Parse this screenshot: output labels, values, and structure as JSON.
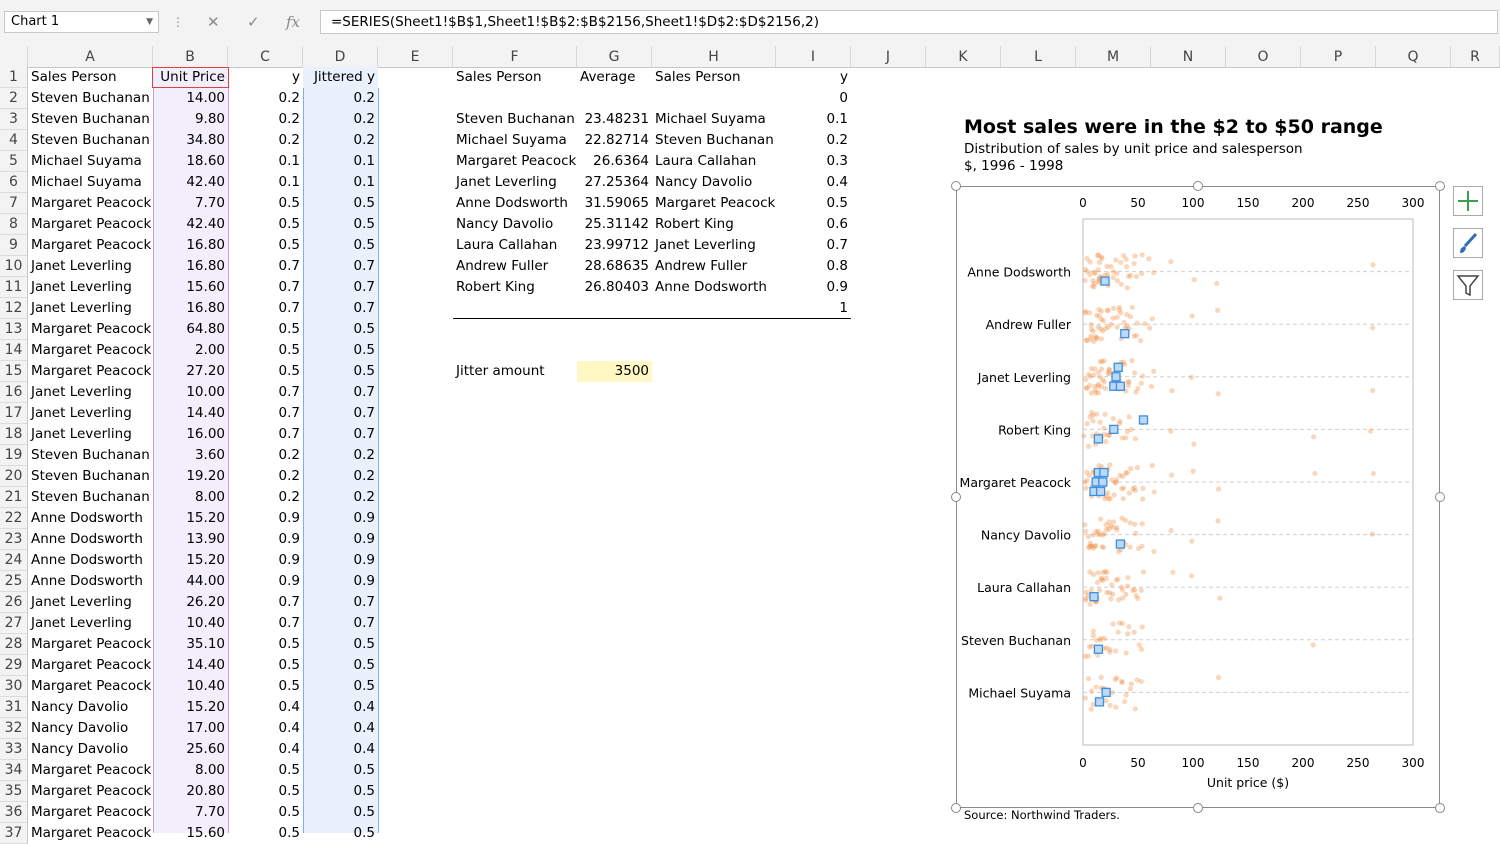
{
  "name_box": "Chart 1",
  "formula": "=SERIES(Sheet1!$B$1,Sheet1!$B$2:$B$2156,Sheet1!$D$2:$D$2156,2)",
  "icons": {
    "cancel": "cancel-icon",
    "enter": "enter-icon",
    "fx": "fx-icon"
  },
  "columns": [
    "A",
    "B",
    "C",
    "D",
    "E",
    "F",
    "G",
    "H",
    "I",
    "J",
    "K",
    "L",
    "M",
    "N",
    "O",
    "P",
    "Q",
    "R"
  ],
  "rows": [
    {
      "n": "1",
      "a": "Sales Person",
      "b": "Unit Price",
      "c": "y",
      "d": "Jittered y"
    },
    {
      "n": "2",
      "a": "Steven Buchanan",
      "b": "14.00",
      "c": "0.2",
      "d": "0.2"
    },
    {
      "n": "3",
      "a": "Steven Buchanan",
      "b": "9.80",
      "c": "0.2",
      "d": "0.2"
    },
    {
      "n": "4",
      "a": "Steven Buchanan",
      "b": "34.80",
      "c": "0.2",
      "d": "0.2"
    },
    {
      "n": "5",
      "a": "Michael Suyama",
      "b": "18.60",
      "c": "0.1",
      "d": "0.1"
    },
    {
      "n": "6",
      "a": "Michael Suyama",
      "b": "42.40",
      "c": "0.1",
      "d": "0.1"
    },
    {
      "n": "7",
      "a": "Margaret Peacock",
      "b": "7.70",
      "c": "0.5",
      "d": "0.5"
    },
    {
      "n": "8",
      "a": "Margaret Peacock",
      "b": "42.40",
      "c": "0.5",
      "d": "0.5"
    },
    {
      "n": "9",
      "a": "Margaret Peacock",
      "b": "16.80",
      "c": "0.5",
      "d": "0.5"
    },
    {
      "n": "10",
      "a": "Janet Leverling",
      "b": "16.80",
      "c": "0.7",
      "d": "0.7"
    },
    {
      "n": "11",
      "a": "Janet Leverling",
      "b": "15.60",
      "c": "0.7",
      "d": "0.7"
    },
    {
      "n": "12",
      "a": "Janet Leverling",
      "b": "16.80",
      "c": "0.7",
      "d": "0.7"
    },
    {
      "n": "13",
      "a": "Margaret Peacock",
      "b": "64.80",
      "c": "0.5",
      "d": "0.5"
    },
    {
      "n": "14",
      "a": "Margaret Peacock",
      "b": "2.00",
      "c": "0.5",
      "d": "0.5"
    },
    {
      "n": "15",
      "a": "Margaret Peacock",
      "b": "27.20",
      "c": "0.5",
      "d": "0.5"
    },
    {
      "n": "16",
      "a": "Janet Leverling",
      "b": "10.00",
      "c": "0.7",
      "d": "0.7"
    },
    {
      "n": "17",
      "a": "Janet Leverling",
      "b": "14.40",
      "c": "0.7",
      "d": "0.7"
    },
    {
      "n": "18",
      "a": "Janet Leverling",
      "b": "16.00",
      "c": "0.7",
      "d": "0.7"
    },
    {
      "n": "19",
      "a": "Steven Buchanan",
      "b": "3.60",
      "c": "0.2",
      "d": "0.2"
    },
    {
      "n": "20",
      "a": "Steven Buchanan",
      "b": "19.20",
      "c": "0.2",
      "d": "0.2"
    },
    {
      "n": "21",
      "a": "Steven Buchanan",
      "b": "8.00",
      "c": "0.2",
      "d": "0.2"
    },
    {
      "n": "22",
      "a": "Anne Dodsworth",
      "b": "15.20",
      "c": "0.9",
      "d": "0.9"
    },
    {
      "n": "23",
      "a": "Anne Dodsworth",
      "b": "13.90",
      "c": "0.9",
      "d": "0.9"
    },
    {
      "n": "24",
      "a": "Anne Dodsworth",
      "b": "15.20",
      "c": "0.9",
      "d": "0.9"
    },
    {
      "n": "25",
      "a": "Anne Dodsworth",
      "b": "44.00",
      "c": "0.9",
      "d": "0.9"
    },
    {
      "n": "26",
      "a": "Janet Leverling",
      "b": "26.20",
      "c": "0.7",
      "d": "0.7"
    },
    {
      "n": "27",
      "a": "Janet Leverling",
      "b": "10.40",
      "c": "0.7",
      "d": "0.7"
    },
    {
      "n": "28",
      "a": "Margaret Peacock",
      "b": "35.10",
      "c": "0.5",
      "d": "0.5"
    },
    {
      "n": "29",
      "a": "Margaret Peacock",
      "b": "14.40",
      "c": "0.5",
      "d": "0.5"
    },
    {
      "n": "30",
      "a": "Margaret Peacock",
      "b": "10.40",
      "c": "0.5",
      "d": "0.5"
    },
    {
      "n": "31",
      "a": "Nancy Davolio",
      "b": "15.20",
      "c": "0.4",
      "d": "0.4"
    },
    {
      "n": "32",
      "a": "Nancy Davolio",
      "b": "17.00",
      "c": "0.4",
      "d": "0.4"
    },
    {
      "n": "33",
      "a": "Nancy Davolio",
      "b": "25.60",
      "c": "0.4",
      "d": "0.4"
    },
    {
      "n": "34",
      "a": "Margaret Peacock",
      "b": "8.00",
      "c": "0.5",
      "d": "0.5"
    },
    {
      "n": "35",
      "a": "Margaret Peacock",
      "b": "20.80",
      "c": "0.5",
      "d": "0.5"
    },
    {
      "n": "36",
      "a": "Margaret Peacock",
      "b": "7.70",
      "c": "0.5",
      "d": "0.5"
    },
    {
      "n": "37",
      "a": "Margaret Peacock",
      "b": "15.60",
      "c": "0.5",
      "d": "0.5"
    }
  ],
  "summary": {
    "header": {
      "f": "Sales Person",
      "g": "Average",
      "h": "Sales Person",
      "i": "y"
    },
    "i_first": "0",
    "rows": [
      {
        "f": "Steven Buchanan",
        "g": "23.48231",
        "h": "Michael Suyama",
        "i": "0.1"
      },
      {
        "f": "Michael Suyama",
        "g": "22.82714",
        "h": "Steven Buchanan",
        "i": "0.2"
      },
      {
        "f": "Margaret Peacock",
        "g": "26.6364",
        "h": "Laura Callahan",
        "i": "0.3"
      },
      {
        "f": "Janet Leverling",
        "g": "27.25364",
        "h": "Nancy Davolio",
        "i": "0.4"
      },
      {
        "f": "Anne Dodsworth",
        "g": "31.59065",
        "h": "Margaret Peacock",
        "i": "0.5"
      },
      {
        "f": "Nancy Davolio",
        "g": "25.31142",
        "h": "Robert King",
        "i": "0.6"
      },
      {
        "f": "Laura Callahan",
        "g": "23.99712",
        "h": "Janet Leverling",
        "i": "0.7"
      },
      {
        "f": "Andrew Fuller",
        "g": "28.68635",
        "h": "Andrew Fuller",
        "i": "0.8"
      },
      {
        "f": "Robert King",
        "g": "26.80403",
        "h": "Anne Dodsworth",
        "i": "0.9"
      }
    ],
    "i_last": "1",
    "jitter_label": "Jitter amount",
    "jitter_value": "3500"
  },
  "colors": {
    "orange": "#f08a3c",
    "blue": "#3d8fe0",
    "highlight": "#fff7c4",
    "colB": "#f3eefb",
    "colD": "#e9f1fc"
  },
  "chart_data": {
    "type": "scatter",
    "title": "Most sales were in the $2 to $50 range",
    "subtitle": "Distribution of sales by unit price and salesperson",
    "subtitle2": "$, 1996 - 1998",
    "xlabel": "Unit price ($)",
    "xlim": [
      0,
      300
    ],
    "xticks": [
      "0",
      "50",
      "100",
      "150",
      "200",
      "250",
      "300"
    ],
    "categories": [
      "Anne Dodsworth",
      "Andrew Fuller",
      "Janet Leverling",
      "Robert King",
      "Margaret Peacock",
      "Nancy Davolio",
      "Laura Callahan",
      "Steven Buchanan",
      "Michael Suyama"
    ],
    "category_y": [
      0.9,
      0.8,
      0.7,
      0.6,
      0.5,
      0.4,
      0.3,
      0.2,
      0.1
    ],
    "ylim": [
      0,
      1
    ],
    "grid": "dashed horizontal",
    "series": [
      {
        "values": [
          [
            0.9,
            [
              2,
              3,
              4,
              5,
              6,
              7,
              8,
              9,
              10,
              10,
              11,
              12,
              12,
              13,
              14,
              14,
              15,
              15,
              15,
              16,
              17,
              18,
              18,
              19,
              20,
              21,
              22,
              23,
              24,
              25,
              26,
              28,
              30,
              31,
              32,
              34,
              35,
              36,
              38,
              39,
              40,
              42,
              44,
              46,
              48,
              50,
              53,
              55,
              60,
              64,
              81,
              100,
              123,
              263
            ]
          ],
          [
            0.8,
            [
              2,
              3,
              4,
              5,
              6,
              6,
              7,
              8,
              9,
              10,
              10,
              11,
              12,
              13,
              14,
              14,
              15,
              15,
              16,
              17,
              18,
              18,
              19,
              20,
              21,
              22,
              23,
              24,
              25,
              26,
              28,
              30,
              31,
              32,
              33,
              34,
              35,
              36,
              38,
              39,
              40,
              42,
              43,
              45,
              46,
              48,
              50,
              53,
              55,
              62,
              64,
              100,
              123,
              263
            ]
          ],
          [
            0.7,
            [
              2,
              3,
              4,
              5,
              6,
              7,
              8,
              9,
              10,
              10,
              11,
              12,
              12,
              13,
              14,
              14,
              15,
              15,
              16,
              16,
              17,
              18,
              18,
              19,
              20,
              21,
              22,
              23,
              24,
              25,
              26,
              27,
              28,
              30,
              31,
              32,
              33,
              34,
              35,
              36,
              38,
              39,
              40,
              42,
              43,
              45,
              46,
              48,
              50,
              53,
              55,
              62,
              64,
              81,
              100,
              123,
              263
            ]
          ],
          [
            0.6,
            [
              2,
              4,
              5,
              6,
              7,
              8,
              9,
              10,
              11,
              12,
              13,
              14,
              15,
              16,
              17,
              18,
              19,
              20,
              21,
              22,
              24,
              25,
              26,
              28,
              30,
              32,
              34,
              36,
              38,
              40,
              42,
              45,
              48,
              53,
              55,
              81,
              100,
              210,
              263
            ]
          ],
          [
            0.5,
            [
              2,
              3,
              4,
              5,
              6,
              7,
              8,
              8,
              9,
              10,
              10,
              11,
              12,
              13,
              14,
              14,
              15,
              15,
              16,
              17,
              18,
              18,
              19,
              20,
              21,
              22,
              23,
              24,
              25,
              26,
              27,
              28,
              30,
              31,
              32,
              33,
              34,
              35,
              36,
              38,
              39,
              40,
              42,
              43,
              45,
              46,
              48,
              50,
              53,
              55,
              62,
              64,
              81,
              100,
              123,
              210,
              263
            ]
          ],
          [
            0.4,
            [
              2,
              3,
              4,
              5,
              6,
              7,
              8,
              9,
              10,
              10,
              11,
              12,
              13,
              14,
              15,
              15,
              16,
              17,
              18,
              19,
              20,
              21,
              22,
              23,
              24,
              25,
              26,
              28,
              30,
              31,
              32,
              34,
              35,
              36,
              38,
              40,
              42,
              44,
              46,
              48,
              50,
              53,
              55,
              64,
              81,
              100,
              123,
              263
            ]
          ],
          [
            0.3,
            [
              2,
              3,
              4,
              5,
              6,
              7,
              8,
              9,
              10,
              10,
              11,
              12,
              13,
              14,
              14,
              15,
              16,
              17,
              18,
              19,
              20,
              21,
              22,
              23,
              24,
              25,
              26,
              28,
              30,
              31,
              32,
              34,
              35,
              36,
              38,
              40,
              42,
              44,
              46,
              48,
              50,
              53,
              55,
              81,
              100,
              123
            ]
          ],
          [
            0.2,
            [
              3,
              4,
              6,
              8,
              9,
              10,
              12,
              14,
              15,
              17,
              19,
              20,
              22,
              24,
              26,
              28,
              30,
              32,
              34,
              36,
              38,
              40,
              43,
              46,
              50,
              53,
              55,
              210
            ]
          ],
          [
            0.1,
            [
              3,
              5,
              6,
              8,
              10,
              12,
              14,
              16,
              18,
              19,
              20,
              22,
              24,
              26,
              28,
              30,
              32,
              34,
              36,
              38,
              40,
              42,
              45,
              48,
              50,
              53,
              123
            ]
          ]
        ]
      },
      {
        "values": [
          [
            0.9,
            [
              20
            ]
          ],
          [
            0.8,
            [
              38
            ]
          ],
          [
            0.7,
            [
              28,
              30,
              32,
              34
            ]
          ],
          [
            0.6,
            [
              14,
              28,
              55
            ]
          ],
          [
            0.5,
            [
              10,
              12,
              14,
              16,
              18,
              19
            ]
          ],
          [
            0.4,
            [
              34
            ]
          ],
          [
            0.3,
            [
              10
            ]
          ],
          [
            0.2,
            [
              14
            ]
          ],
          [
            0.1,
            [
              15,
              21
            ]
          ]
        ]
      }
    ],
    "source": "Source: Northwind Traders."
  }
}
